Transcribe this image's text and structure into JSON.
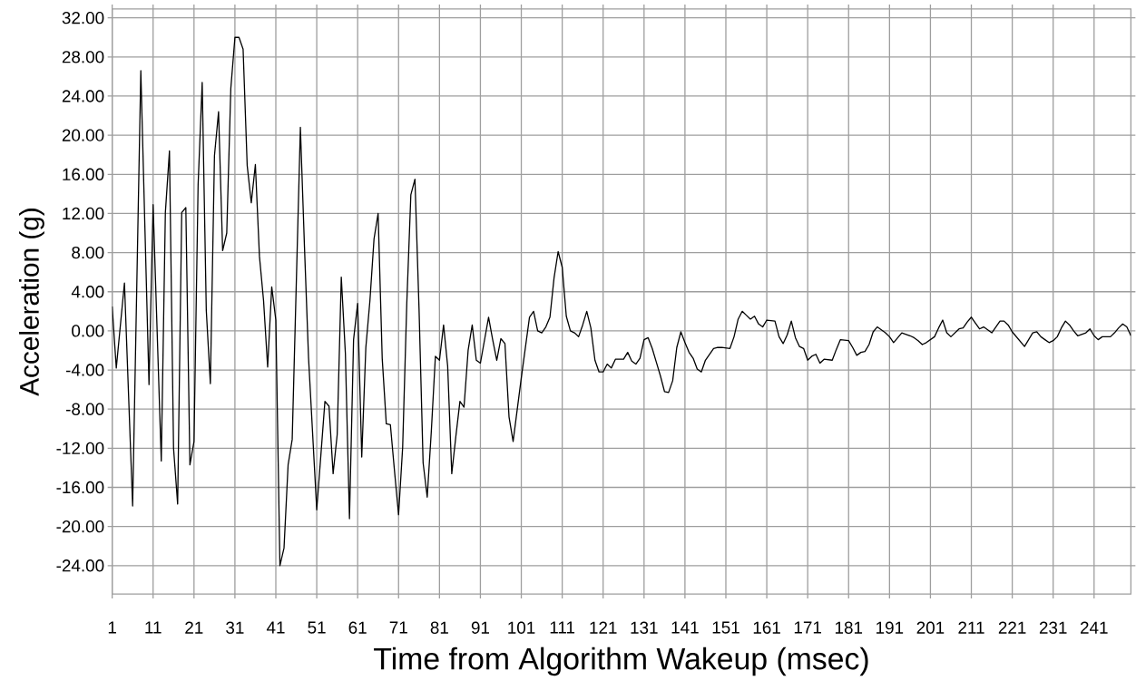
{
  "chart_data": {
    "type": "line",
    "xlabel": "Time from Algorithm Wakeup (msec)",
    "ylabel": "Acceleration (g)",
    "color": "#000000",
    "grid": true,
    "xlim": [
      1,
      250
    ],
    "ylim": [
      -26.9,
      32.9
    ],
    "xticks": [
      1,
      11,
      21,
      31,
      41,
      51,
      61,
      71,
      81,
      91,
      101,
      111,
      121,
      131,
      141,
      151,
      161,
      171,
      181,
      191,
      201,
      211,
      221,
      231,
      241
    ],
    "yticks": [
      {
        "value": 32,
        "label": "32.00"
      },
      {
        "value": 28,
        "label": "28.00"
      },
      {
        "value": 24,
        "label": "24.00"
      },
      {
        "value": 20,
        "label": "20.00"
      },
      {
        "value": 16,
        "label": "16.00"
      },
      {
        "value": 12,
        "label": "12.00"
      },
      {
        "value": 8,
        "label": "8.00"
      },
      {
        "value": 4,
        "label": "4.00"
      },
      {
        "value": 0,
        "label": "0.00"
      },
      {
        "value": -4,
        "label": "-4.00"
      },
      {
        "value": -8,
        "label": "-8.00"
      },
      {
        "value": -12,
        "label": "-12.00"
      },
      {
        "value": -16,
        "label": "-16.00"
      },
      {
        "value": -20,
        "label": "-20.00"
      },
      {
        "value": -24,
        "label": "-24.00"
      }
    ],
    "x": [
      1,
      2,
      4,
      6,
      8,
      10,
      11,
      13,
      14,
      15,
      16,
      17,
      18,
      19,
      20,
      21,
      22,
      23,
      24,
      25,
      26,
      27,
      28,
      29,
      30,
      31,
      32,
      33,
      34,
      35,
      36,
      37,
      38,
      39,
      40,
      41,
      42,
      43,
      44,
      45,
      47,
      48,
      49,
      51,
      53,
      54,
      55,
      56,
      57,
      58,
      59,
      60,
      61,
      62,
      63,
      64,
      65,
      66,
      67,
      68,
      69,
      70,
      71,
      72,
      73,
      74,
      75,
      76,
      77,
      78,
      79,
      80,
      81,
      82,
      83,
      84,
      85,
      86,
      87,
      88,
      89,
      90,
      91,
      93,
      94,
      95,
      96,
      97,
      98,
      99,
      101,
      103,
      104,
      105,
      106,
      107,
      108,
      109,
      110,
      111,
      112,
      113,
      114,
      115,
      116,
      117,
      118,
      119,
      120,
      121,
      122,
      123,
      124,
      126,
      127,
      128,
      129,
      130,
      131,
      132,
      133,
      134,
      135,
      136,
      137,
      138,
      139,
      140,
      141,
      142,
      143,
      144,
      145,
      146,
      147,
      148,
      149,
      150,
      152,
      153,
      154,
      155,
      156,
      157,
      158,
      159,
      160,
      161,
      163,
      164,
      165,
      166,
      167,
      168,
      169,
      170,
      171,
      172,
      173,
      174,
      175,
      177,
      178,
      179,
      181,
      182,
      183,
      184,
      185,
      186,
      187,
      188,
      190,
      191,
      192,
      193,
      194,
      196,
      197,
      198,
      199,
      200,
      202,
      203,
      204,
      205,
      206,
      208,
      209,
      210,
      211,
      212,
      213,
      214,
      216,
      217,
      218,
      219,
      220,
      221,
      222,
      223,
      224,
      225,
      226,
      227,
      228,
      229,
      230,
      231,
      232,
      233,
      234,
      235,
      236,
      237,
      239,
      240,
      241,
      242,
      243,
      245,
      246,
      247,
      248,
      249,
      250
    ],
    "values": [
      2.5,
      -3.8,
      4.9,
      -17.9,
      26.6,
      -5.5,
      12.9,
      -13.3,
      12.1,
      18.4,
      -12.0,
      -17.7,
      12.1,
      12.6,
      -13.7,
      -11.3,
      14.9,
      25.4,
      2.1,
      -5.4,
      17.9,
      22.4,
      8.2,
      10.0,
      24.8,
      30.0,
      30.0,
      28.8,
      16.9,
      13.1,
      17.0,
      7.6,
      3.1,
      -3.7,
      4.5,
      1.1,
      -24.0,
      -22.2,
      -13.7,
      -11.1,
      20.8,
      8.6,
      -2.8,
      -18.3,
      -7.2,
      -7.7,
      -14.6,
      -10.6,
      5.5,
      -2.3,
      -19.2,
      -0.9,
      2.8,
      -12.9,
      -1.7,
      3.1,
      9.4,
      12.0,
      -2.8,
      -9.5,
      -9.6,
      -14.3,
      -18.8,
      -11.9,
      2.7,
      13.9,
      15.5,
      2.3,
      -13.5,
      -17.0,
      -10.3,
      -2.6,
      -3.0,
      0.6,
      -3.6,
      -14.6,
      -10.8,
      -7.2,
      -7.8,
      -2.0,
      0.6,
      -3.0,
      -3.3,
      1.4,
      -0.9,
      -3.0,
      -0.8,
      -1.3,
      -8.8,
      -11.3,
      -4.8,
      1.4,
      2.0,
      0.0,
      -0.2,
      0.4,
      1.4,
      5.4,
      8.1,
      6.5,
      1.5,
      0.0,
      -0.2,
      -0.6,
      0.6,
      2.0,
      0.3,
      -3.0,
      -4.2,
      -4.2,
      -3.4,
      -3.8,
      -2.9,
      -2.9,
      -2.2,
      -3.1,
      -3.4,
      -2.8,
      -0.9,
      -0.7,
      -1.8,
      -3.2,
      -4.6,
      -6.2,
      -6.3,
      -5.1,
      -1.7,
      -0.1,
      -1.2,
      -2.2,
      -2.8,
      -3.9,
      -4.2,
      -3.0,
      -2.4,
      -1.8,
      -1.7,
      -1.7,
      -1.8,
      -0.6,
      1.2,
      2.0,
      1.6,
      1.2,
      1.5,
      0.7,
      0.4,
      1.1,
      1.0,
      -0.6,
      -1.3,
      -0.4,
      1.0,
      -0.7,
      -1.6,
      -1.8,
      -3.0,
      -2.6,
      -2.4,
      -3.3,
      -2.9,
      -3.0,
      -1.9,
      -0.9,
      -1.0,
      -1.7,
      -2.5,
      -2.2,
      -2.1,
      -1.4,
      -0.1,
      0.4,
      -0.2,
      -0.6,
      -1.2,
      -0.7,
      -0.2,
      -0.5,
      -0.7,
      -1.0,
      -1.4,
      -1.2,
      -0.6,
      0.3,
      1.1,
      -0.2,
      -0.6,
      0.2,
      0.3,
      0.9,
      1.4,
      0.8,
      0.2,
      0.4,
      -0.2,
      0.4,
      1.0,
      1.0,
      0.6,
      -0.1,
      -0.6,
      -1.1,
      -1.6,
      -0.9,
      -0.2,
      -0.1,
      -0.6,
      -0.9,
      -1.2,
      -1.0,
      -0.6,
      0.3,
      1.0,
      0.6,
      0.0,
      -0.5,
      -0.2,
      0.2,
      -0.5,
      -0.9,
      -0.6,
      -0.6,
      -0.2,
      0.3,
      0.7,
      0.4,
      -0.5
    ]
  }
}
